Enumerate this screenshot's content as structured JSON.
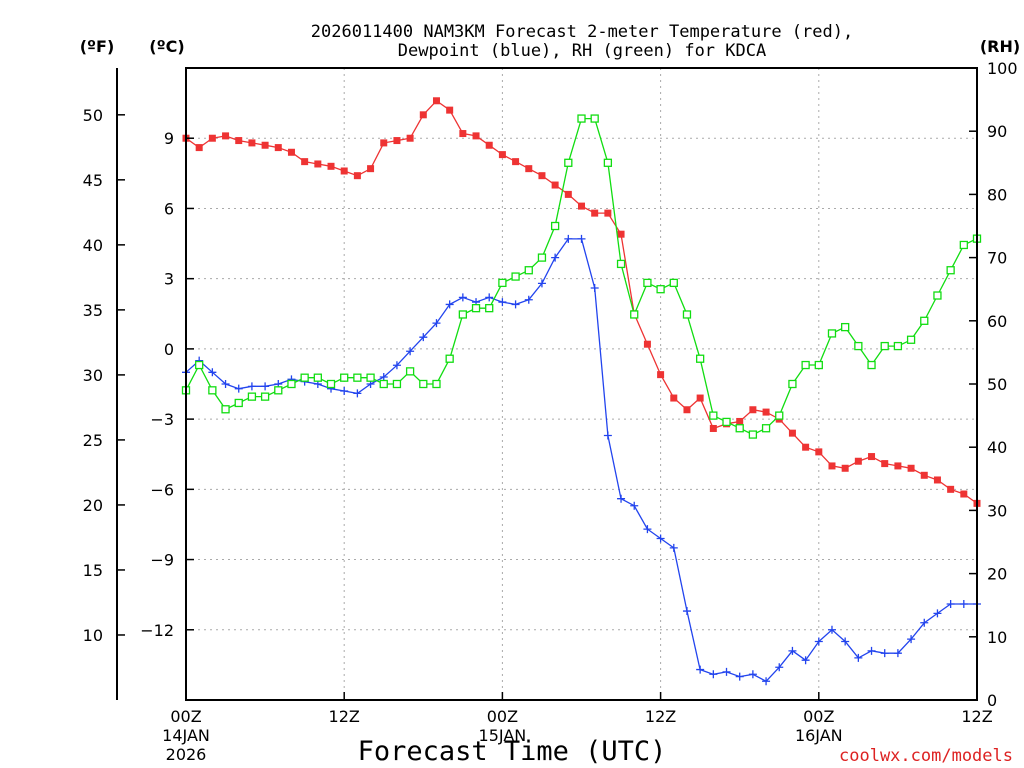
{
  "chart_data": {
    "type": "line",
    "title_line1": "2026011400 NAM3KM Forecast 2-meter Temperature (red),",
    "title_line2": "Dewpoint (blue), RH (green) for KDCA",
    "unit_f": "(ºF)",
    "unit_c": "(ºC)",
    "unit_rh": "(RH)",
    "xlabel": "Forecast Time (UTC)",
    "credit": "coolwx.com/models",
    "xlim": [
      0,
      60
    ],
    "ylim_c": [
      -15,
      12
    ],
    "ylim_rh": [
      0,
      100
    ],
    "f_ticks": [
      "10",
      "15",
      "20",
      "25",
      "30",
      "35",
      "40",
      "45",
      "50"
    ],
    "f_tick_values": [
      10,
      15,
      20,
      25,
      30,
      35,
      40,
      45,
      50
    ],
    "c_ticks": [
      "−12",
      "−9",
      "−6",
      "−3",
      "0",
      "3",
      "6",
      "9"
    ],
    "c_tick_values": [
      -12,
      -9,
      -6,
      -3,
      0,
      3,
      6,
      9
    ],
    "rh_ticks": [
      "0",
      "10",
      "20",
      "30",
      "40",
      "50",
      "60",
      "70",
      "80",
      "90",
      "100"
    ],
    "rh_tick_values": [
      0,
      10,
      20,
      30,
      40,
      50,
      60,
      70,
      80,
      90,
      100
    ],
    "x_ticks": [
      {
        "hour": 0,
        "label": "00Z",
        "date": "14JAN",
        "year": "2026"
      },
      {
        "hour": 12,
        "label": "12Z",
        "date": "",
        "year": ""
      },
      {
        "hour": 24,
        "label": "00Z",
        "date": "15JAN",
        "year": ""
      },
      {
        "hour": 36,
        "label": "12Z",
        "date": "",
        "year": ""
      },
      {
        "hour": 48,
        "label": "00Z",
        "date": "16JAN",
        "year": ""
      },
      {
        "hour": 60,
        "label": "12Z",
        "date": "",
        "year": ""
      }
    ],
    "series": [
      {
        "name": "2-meter Temperature",
        "unit": "C",
        "color": "#ee3333",
        "marker": "filled-square",
        "values": [
          9.0,
          8.6,
          9.0,
          9.1,
          8.9,
          8.8,
          8.7,
          8.6,
          8.4,
          8.0,
          7.9,
          7.8,
          7.6,
          7.4,
          7.7,
          8.8,
          8.9,
          9.0,
          10.0,
          10.6,
          10.2,
          9.2,
          9.1,
          8.7,
          8.3,
          8.0,
          7.7,
          7.4,
          7.0,
          6.6,
          6.1,
          5.8,
          5.8,
          4.9,
          1.5,
          0.2,
          -1.1,
          -2.1,
          -2.6,
          -2.1,
          -3.4,
          -3.2,
          -3.1,
          -2.6,
          -2.7,
          -3.0,
          -3.6,
          -4.2,
          -4.4,
          -5.0,
          -5.1,
          -4.8,
          -4.6,
          -4.9,
          -5.0,
          -5.1,
          -5.4,
          -5.6,
          -6.0,
          -6.2,
          -6.6
        ]
      },
      {
        "name": "Dewpoint",
        "unit": "C",
        "color": "#2244ee",
        "marker": "plus",
        "values": [
          -1.0,
          -0.5,
          -1.0,
          -1.5,
          -1.7,
          -1.6,
          -1.6,
          -1.5,
          -1.3,
          -1.4,
          -1.5,
          -1.7,
          -1.8,
          -1.9,
          -1.5,
          -1.2,
          -0.7,
          -0.1,
          0.5,
          1.1,
          1.9,
          2.2,
          2.0,
          2.2,
          2.0,
          1.9,
          2.1,
          2.8,
          3.9,
          4.7,
          4.7,
          2.6,
          -3.7,
          -6.4,
          -6.7,
          -7.7,
          -8.1,
          -8.5,
          -11.2,
          -13.7,
          -13.9,
          -13.8,
          -14.0,
          -13.9,
          -14.2,
          -13.6,
          -12.9,
          -13.3,
          -12.5,
          -12.0,
          -12.5,
          -13.2,
          -12.9,
          -13.0,
          -13.0,
          -12.4,
          -11.7,
          -11.3,
          -10.9,
          -10.9,
          -10.9
        ]
      },
      {
        "name": "RH",
        "unit": "%",
        "color": "#11dd11",
        "marker": "open-square",
        "values": [
          49,
          53,
          49,
          46,
          47,
          48,
          48,
          49,
          50,
          51,
          51,
          50,
          51,
          51,
          51,
          50,
          50,
          52,
          50,
          50,
          54,
          61,
          62,
          62,
          66,
          67,
          68,
          70,
          75,
          85,
          92,
          92,
          85,
          69,
          61,
          66,
          65,
          66,
          61,
          54,
          45,
          44,
          43,
          42,
          43,
          45,
          50,
          53,
          53,
          58,
          59,
          56,
          53,
          56,
          56,
          57,
          60,
          64,
          68,
          72,
          73
        ]
      }
    ]
  }
}
